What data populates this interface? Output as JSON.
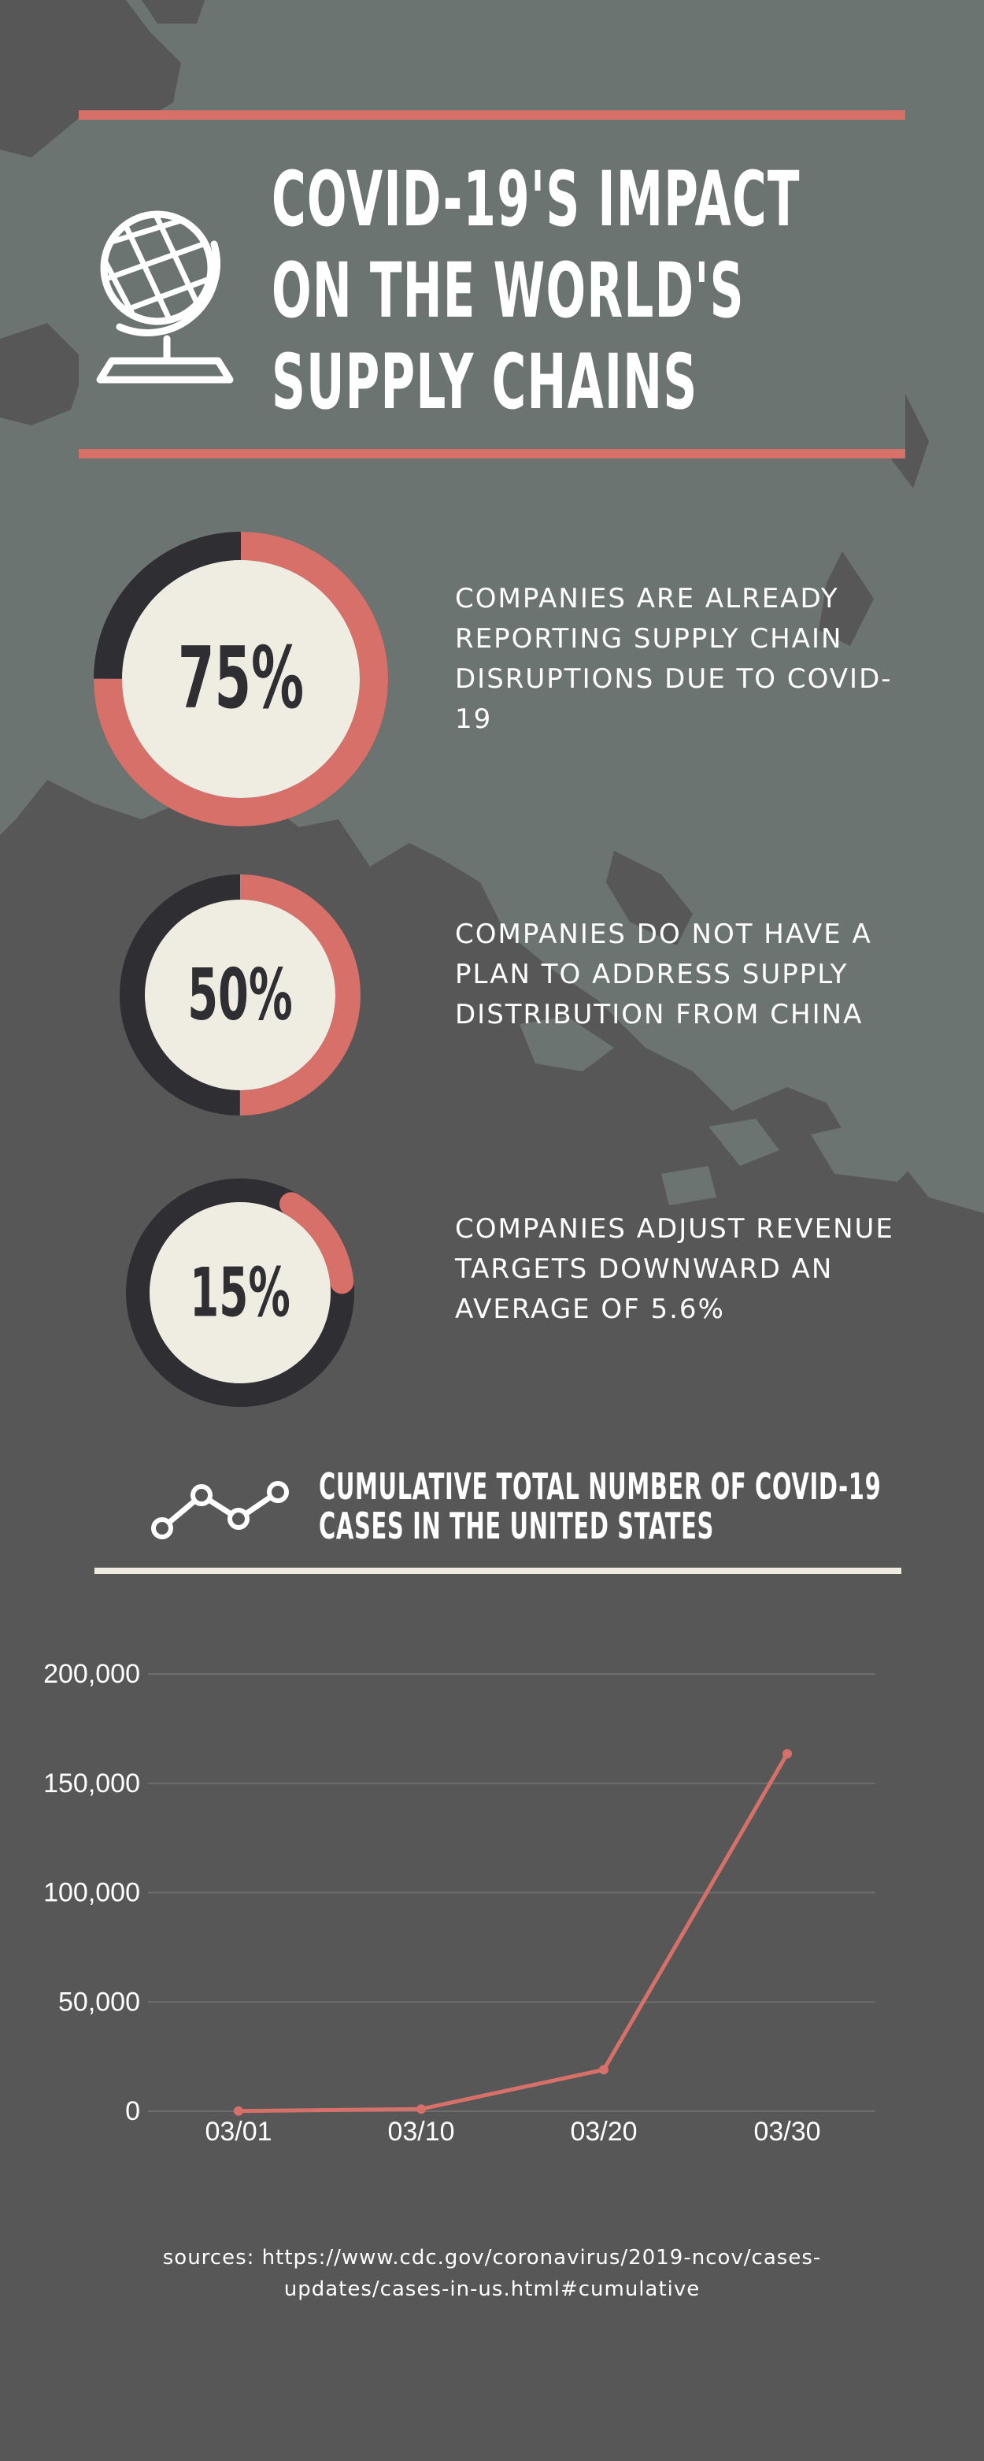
{
  "header": {
    "title_lines": [
      "COVID-19'S IMPACT",
      "ON THE WORLD'S",
      "SUPPLY CHAINS"
    ]
  },
  "stats": [
    {
      "percent_label": "75%",
      "value": 75,
      "text": "COMPANIES ARE ALREADY REPORTING SUPPLY CHAIN DISRUPTIONS DUE TO COVID-19"
    },
    {
      "percent_label": "50%",
      "value": 50,
      "text": "COMPANIES DO NOT HAVE A PLAN TO ADDRESS SUPPLY DISTRIBUTION FROM CHINA"
    },
    {
      "percent_label": "15%",
      "value": 15,
      "text": "COMPANIES ADJUST REVENUE TARGETS DOWNWARD AN AVERAGE OF 5.6%"
    }
  ],
  "chart_section": {
    "title_lines": [
      "CUMULATIVE TOTAL NUMBER OF COVID-19",
      "CASES IN THE UNITED STATES"
    ]
  },
  "chart_data": {
    "type": "line",
    "title": "CUMULATIVE TOTAL NUMBER OF COVID-19 CASES IN THE UNITED STATES",
    "xlabel": "",
    "ylabel": "",
    "categories": [
      "03/01",
      "03/10",
      "03/20",
      "03/30"
    ],
    "series": [
      {
        "values": [
          100,
          1000,
          19000,
          163500
        ]
      }
    ],
    "ylim": [
      0,
      200000
    ],
    "yticks": [
      0,
      50000,
      100000,
      150000,
      200000
    ],
    "ytick_labels": [
      "0",
      "50,000",
      "100,000",
      "150,000",
      "200,000"
    ],
    "grid": true,
    "legend": "none"
  },
  "sources": {
    "line1": "sources: https://www.cdc.gov/coronavirus/2019-ncov/cases-",
    "line2": "updates/cases-in-us.html#cumulative"
  },
  "colors": {
    "accent": "#d8706a",
    "background": "#575757",
    "panel": "#6c7472",
    "ring_track": "#2e2e33",
    "ring_fill": "#efece2",
    "text": "#ffffff",
    "grid": "#6e6e6e"
  },
  "icons": {
    "header": "globe-icon",
    "chart": "line-chart-icon"
  }
}
